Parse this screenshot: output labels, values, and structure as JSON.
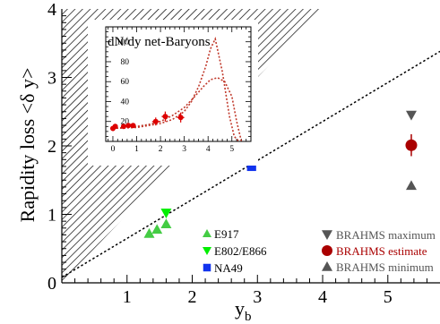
{
  "chart_data": {
    "type": "scatter",
    "xlabel": "y_b",
    "ylabel": "Rapidity loss <δ y>",
    "xlim": [
      0,
      5.8
    ],
    "ylim": [
      0,
      4
    ],
    "x_ticks": [
      1,
      2,
      3,
      4,
      5
    ],
    "y_ticks": [
      0,
      1,
      2,
      3,
      4
    ],
    "reference_line": {
      "x": [
        0,
        5.8
      ],
      "y": [
        0.08,
        3.38
      ],
      "style": "dotted"
    },
    "excluded_region": "hatched triangle above the line <δ y> = y_b",
    "series": [
      {
        "name": "E917",
        "marker": "triangle-up",
        "color": "#44cc44",
        "x": [
          1.34,
          1.46,
          1.6
        ],
        "y": [
          0.72,
          0.78,
          0.86
        ]
      },
      {
        "name": "E802/E866",
        "marker": "triangle-down",
        "color": "#00ee00",
        "x": [
          1.6
        ],
        "y": [
          1.02
        ]
      },
      {
        "name": "NA49",
        "marker": "square",
        "color": "#1133ee",
        "x": [
          2.91
        ],
        "y": [
          1.7
        ]
      },
      {
        "name": "BRAHMS maximum",
        "marker": "triangle-down",
        "color": "#555555",
        "x": [
          5.36
        ],
        "y": [
          2.45
        ]
      },
      {
        "name": "BRAHMS estimate",
        "marker": "circle",
        "color": "#aa0000",
        "x": [
          5.36
        ],
        "y": [
          2.01
        ],
        "yerr": 0.16
      },
      {
        "name": "BRAHMS minimum",
        "marker": "triangle-up",
        "color": "#555555",
        "x": [
          5.36
        ],
        "y": [
          1.42
        ]
      }
    ],
    "legend_position": "bottom-right",
    "inset": {
      "title": "dN/dy net-Baryons",
      "type": "scatter",
      "xlim": [
        -0.3,
        5.8
      ],
      "ylim": [
        0,
        115
      ],
      "x_ticks": [
        0,
        1,
        2,
        3,
        4,
        5
      ],
      "y_ticks": [
        20,
        40,
        60,
        80,
        100
      ],
      "points": {
        "color": "#dd0000",
        "x": [
          0.0,
          0.1,
          0.45,
          0.65,
          0.85,
          1.8,
          2.2,
          2.85
        ],
        "y": [
          13,
          15,
          15,
          16,
          16,
          20,
          25,
          24
        ],
        "yerr": [
          0,
          0,
          0,
          0,
          0,
          4,
          5,
          5
        ]
      },
      "curves": [
        {
          "x": [
            0,
            1,
            1.5,
            2,
            2.5,
            3,
            3.3,
            3.6,
            3.9,
            4.1,
            4.3,
            4.6,
            4.9,
            5.1,
            5.3
          ],
          "y": [
            13,
            14,
            16,
            18,
            22,
            30,
            40,
            55,
            75,
            93,
            103,
            70,
            25,
            5,
            0
          ]
        },
        {
          "x": [
            0,
            1,
            1.5,
            2,
            2.5,
            3,
            3.4,
            3.8,
            4.1,
            4.4,
            4.7,
            5.0,
            5.2,
            5.4
          ],
          "y": [
            13,
            15,
            17,
            20,
            26,
            34,
            44,
            55,
            62,
            64,
            60,
            45,
            20,
            0
          ]
        }
      ]
    }
  }
}
